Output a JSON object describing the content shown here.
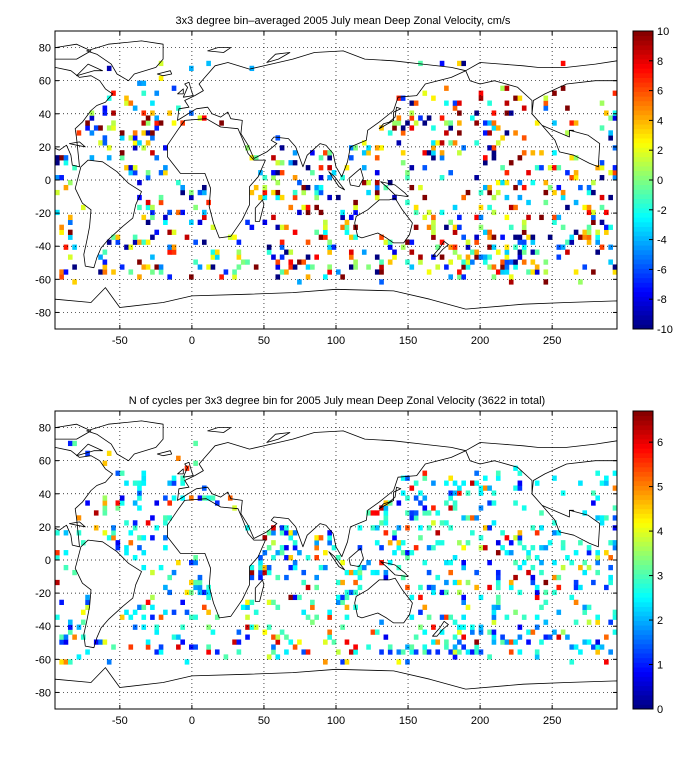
{
  "chart_data": [
    {
      "type": "heatmap",
      "title": "3x3 degree bin–averaged 2005 July mean Deep Zonal Velocity, cm/s",
      "xlabel": "",
      "ylabel": "",
      "xlim": [
        -95,
        295
      ],
      "ylim": [
        -90,
        90
      ],
      "x_ticks": [
        "-50",
        "0",
        "50",
        "100",
        "150",
        "200",
        "250"
      ],
      "x_tick_values": [
        -50,
        0,
        50,
        100,
        150,
        200,
        250
      ],
      "y_ticks": [
        "80",
        "60",
        "40",
        "20",
        "0",
        "-20",
        "-40",
        "-60",
        "-80"
      ],
      "y_tick_values": [
        80,
        60,
        40,
        20,
        0,
        -20,
        -40,
        -60,
        -80
      ],
      "grid": true,
      "grid_style": "dotted",
      "bin_size_deg": 3,
      "colormap": "jet",
      "colorbar_range": [
        -10,
        10
      ],
      "colorbar_ticks": [
        "10",
        "8",
        "6",
        "4",
        "2",
        "0",
        "-2",
        "-4",
        "-6",
        "-8",
        "-10"
      ],
      "colorbar_tick_values": [
        10,
        8,
        6,
        4,
        2,
        0,
        -2,
        -4,
        -6,
        -8,
        -10
      ],
      "seed": 7
    },
    {
      "type": "heatmap",
      "title": "N of cycles per 3x3 degree bin for 2005 July mean Deep Zonal Velocity (3622 in total)",
      "xlabel": "",
      "ylabel": "",
      "xlim": [
        -95,
        295
      ],
      "ylim": [
        -90,
        90
      ],
      "x_ticks": [
        "-50",
        "0",
        "50",
        "100",
        "150",
        "200",
        "250"
      ],
      "x_tick_values": [
        -50,
        0,
        50,
        100,
        150,
        200,
        250
      ],
      "y_ticks": [
        "80",
        "60",
        "40",
        "20",
        "0",
        "-20",
        "-40",
        "-60",
        "-80"
      ],
      "y_tick_values": [
        80,
        60,
        40,
        20,
        0,
        -20,
        -40,
        -60,
        -80
      ],
      "grid": true,
      "grid_style": "dotted",
      "bin_size_deg": 3,
      "colormap": "jet",
      "colorbar_range": [
        0,
        6.7
      ],
      "colorbar_ticks": [
        "6",
        "5",
        "4",
        "3",
        "2",
        "1",
        "0"
      ],
      "colorbar_tick_values": [
        6,
        5,
        4,
        3,
        2,
        1,
        0
      ],
      "total_cycles": 3622,
      "seed": 19
    }
  ]
}
